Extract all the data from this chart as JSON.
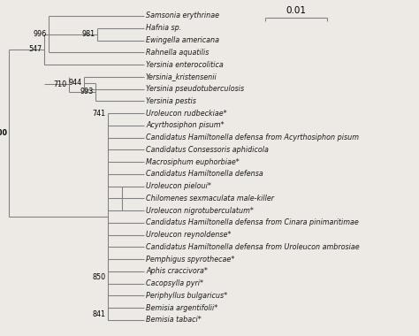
{
  "background_color": "#ede9e4",
  "tree_color": "#808080",
  "text_color": "#1a1a1a",
  "taxa": [
    "Samsonia erythrinae",
    "Hafnia sp.",
    "Ewingella americana",
    "Rahnella aquatilis",
    "Yersinia enterocolitica",
    "Yersinia_kristensenii",
    "Yersinia pseudotuberculosis",
    "Yersinia pestis",
    "Uroleucon rudbeckiae*",
    "Acyrthosiphon pisum*",
    "Candidatus Hamiltonella defensa from Acyrthosiphon pisum",
    "Candidatus Consessoris aphidicola",
    "Macrosiphum euphorbiae*",
    "Candidatus Hamiltonella defensa",
    "Uroleucon pieloui*",
    "Chilomenes sexmaculata male-killer",
    "Uroleucon nigrotuberculatum*",
    "Candidatus Hamiltonella defensa from Cinara pinimaritimae",
    "Uroleucon reynoldense*",
    "Candidatus Hamiltonella defensa from Uroleucon ambrosiae",
    "Pemphigus spyrothecae*",
    "Aphis craccivora*",
    "Cacopsylla pyri*",
    "Periphyllus bulgaricus*",
    "Bemisia argentifolii*",
    "Bemisia tabaci*"
  ],
  "lw": 0.75,
  "fontsize": 5.8,
  "scale_bar_label": "0.01"
}
